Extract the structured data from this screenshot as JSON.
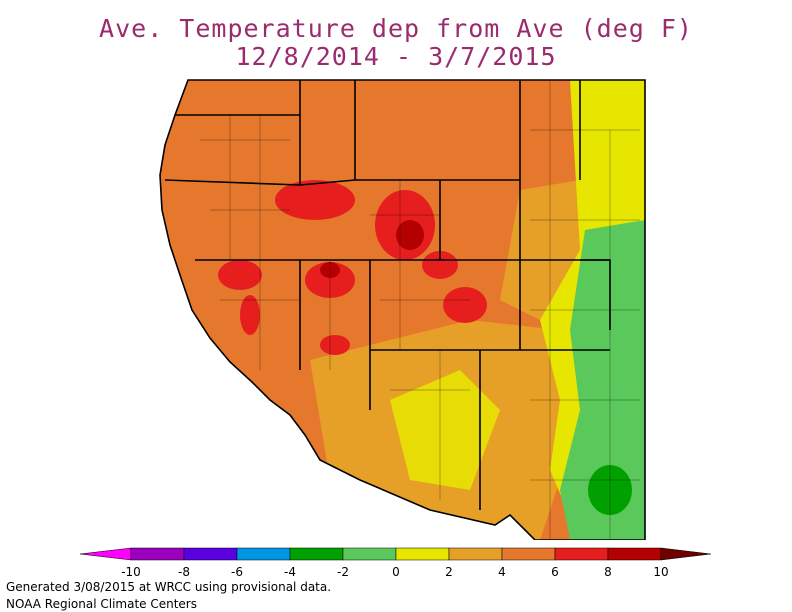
{
  "map": {
    "title_line1": "Ave. Temperature dep from Ave (deg F)",
    "title_line2": "12/8/2014 - 3/7/2015",
    "region": "Western United States",
    "legend": {
      "ticks": [
        "-10",
        "-8",
        "-6",
        "-4",
        "-2",
        "0",
        "2",
        "4",
        "6",
        "8",
        "10"
      ],
      "bins": [
        {
          "range": "< -10",
          "color": "#ff00ff"
        },
        {
          "range": "-10 to -8",
          "color": "#9b00bf"
        },
        {
          "range": "-8 to -6",
          "color": "#5b00e0"
        },
        {
          "range": "-6 to -4",
          "color": "#0096e6"
        },
        {
          "range": "-4 to -2",
          "color": "#00a000"
        },
        {
          "range": "-2 to 0",
          "color": "#5ac85a"
        },
        {
          "range": "0 to 2",
          "color": "#e6e600"
        },
        {
          "range": "2 to 4",
          "color": "#e6a028"
        },
        {
          "range": "4 to 6",
          "color": "#e6782d"
        },
        {
          "range": "6 to 8",
          "color": "#e61e1e"
        },
        {
          "range": "8 to 10",
          "color": "#b40000"
        },
        {
          "range": "> 10",
          "color": "#6e0000"
        }
      ]
    },
    "footer_line1": "Generated 3/08/2015 at WRCC using provisional data.",
    "footer_line2": "NOAA Regional Climate Centers"
  }
}
